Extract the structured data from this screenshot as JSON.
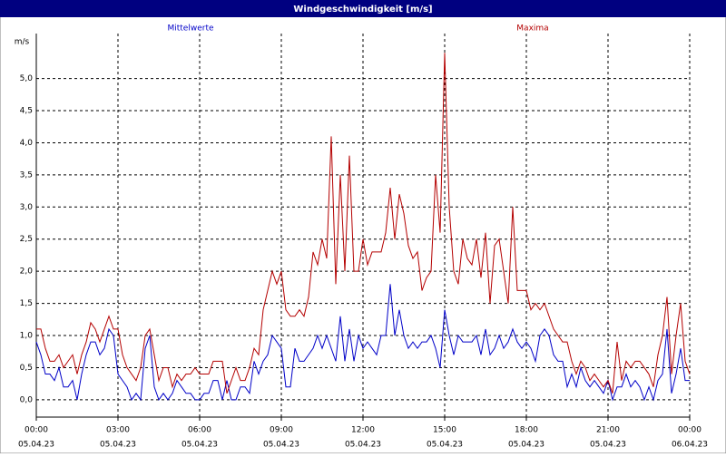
{
  "chart_data": {
    "type": "line",
    "title": "Windgeschwindigkeit [m/s]",
    "y_unit": "m/s",
    "x": [
      0,
      10,
      20,
      30,
      40,
      50,
      60,
      70,
      80,
      90,
      100,
      110,
      120,
      130,
      140,
      150,
      160,
      170,
      180,
      190,
      200,
      210,
      220,
      230,
      240,
      250,
      260,
      270,
      280,
      290,
      300,
      310,
      320,
      330,
      340,
      350,
      360,
      370,
      380,
      390,
      400,
      410,
      420,
      430,
      440,
      450,
      460,
      470,
      480,
      490,
      500,
      510,
      520,
      530,
      540,
      550,
      560,
      570,
      580,
      590,
      600,
      610,
      620,
      630,
      640,
      650,
      660,
      670,
      680,
      690,
      700,
      710,
      720,
      730,
      740,
      750,
      760,
      770,
      780,
      790,
      800,
      810,
      820,
      830,
      840,
      850,
      860,
      870,
      880,
      890,
      900,
      910,
      920,
      930,
      940,
      950,
      960,
      970,
      980,
      990,
      1000,
      1010,
      1020,
      1030,
      1040,
      1050,
      1060,
      1070,
      1080,
      1090,
      1100,
      1110,
      1120,
      1130,
      1140,
      1150,
      1160,
      1170,
      1180,
      1190,
      1200,
      1210,
      1220,
      1230,
      1240,
      1250,
      1260,
      1270,
      1280,
      1290,
      1300,
      1310,
      1320,
      1330,
      1340,
      1350,
      1360,
      1370,
      1380,
      1390,
      1400,
      1410,
      1420,
      1430,
      1440
    ],
    "series": [
      {
        "name": "Mittelwerte",
        "color": "#0000c8",
        "values": [
          0.9,
          0.7,
          0.4,
          0.4,
          0.3,
          0.5,
          0.2,
          0.2,
          0.3,
          0.0,
          0.4,
          0.7,
          0.9,
          0.9,
          0.7,
          0.8,
          1.1,
          1.0,
          0.4,
          0.3,
          0.2,
          0.0,
          0.1,
          0.0,
          0.8,
          1.0,
          0.2,
          0.0,
          0.1,
          0.0,
          0.1,
          0.3,
          0.2,
          0.1,
          0.1,
          0.0,
          0.0,
          0.1,
          0.1,
          0.3,
          0.3,
          0.0,
          0.3,
          0.0,
          0.0,
          0.2,
          0.2,
          0.1,
          0.6,
          0.4,
          0.6,
          0.7,
          1.0,
          0.9,
          0.8,
          0.2,
          0.2,
          0.8,
          0.6,
          0.6,
          0.7,
          0.8,
          1.0,
          0.8,
          1.0,
          0.8,
          0.6,
          1.3,
          0.6,
          1.1,
          0.6,
          1.0,
          0.8,
          0.9,
          0.8,
          0.7,
          1.0,
          1.0,
          1.8,
          1.0,
          1.4,
          1.0,
          0.8,
          0.9,
          0.8,
          0.9,
          0.9,
          1.0,
          0.8,
          0.5,
          1.4,
          1.0,
          0.7,
          1.0,
          0.9,
          0.9,
          0.9,
          1.0,
          0.7,
          1.1,
          0.7,
          0.8,
          1.0,
          0.8,
          0.9,
          1.1,
          0.9,
          0.8,
          0.9,
          0.8,
          0.6,
          1.0,
          1.1,
          1.0,
          0.7,
          0.6,
          0.6,
          0.2,
          0.4,
          0.2,
          0.5,
          0.3,
          0.2,
          0.3,
          0.2,
          0.1,
          0.3,
          0.0,
          0.2,
          0.2,
          0.4,
          0.2,
          0.3,
          0.2,
          0.0,
          0.2,
          0.0,
          0.3,
          0.4,
          1.1,
          0.1,
          0.4,
          0.8,
          0.3,
          0.3
        ]
      },
      {
        "name": "Maxima",
        "color": "#b40000",
        "values": [
          1.1,
          1.1,
          0.8,
          0.6,
          0.6,
          0.7,
          0.5,
          0.6,
          0.7,
          0.4,
          0.7,
          0.9,
          1.2,
          1.1,
          0.9,
          1.1,
          1.3,
          1.1,
          1.1,
          0.7,
          0.5,
          0.4,
          0.3,
          0.5,
          1.0,
          1.1,
          0.7,
          0.3,
          0.5,
          0.5,
          0.2,
          0.4,
          0.3,
          0.4,
          0.4,
          0.5,
          0.4,
          0.4,
          0.4,
          0.6,
          0.6,
          0.6,
          0.1,
          0.3,
          0.5,
          0.3,
          0.3,
          0.5,
          0.8,
          0.7,
          1.4,
          1.7,
          2.0,
          1.8,
          2.0,
          1.4,
          1.3,
          1.3,
          1.4,
          1.3,
          1.6,
          2.3,
          2.1,
          2.5,
          2.2,
          4.1,
          1.8,
          3.5,
          2.0,
          3.8,
          2.0,
          2.0,
          2.5,
          2.1,
          2.3,
          2.3,
          2.3,
          2.6,
          3.3,
          2.5,
          3.2,
          2.9,
          2.4,
          2.2,
          2.3,
          1.7,
          1.9,
          2.0,
          3.5,
          2.6,
          5.4,
          3.0,
          2.0,
          1.8,
          2.5,
          2.2,
          2.1,
          2.5,
          1.9,
          2.6,
          1.5,
          2.4,
          2.5,
          2.0,
          1.5,
          3.0,
          1.7,
          1.7,
          1.7,
          1.4,
          1.5,
          1.4,
          1.5,
          1.3,
          1.1,
          1.0,
          0.9,
          0.9,
          0.6,
          0.4,
          0.6,
          0.5,
          0.3,
          0.4,
          0.3,
          0.2,
          0.3,
          0.1,
          0.9,
          0.3,
          0.6,
          0.5,
          0.6,
          0.6,
          0.5,
          0.4,
          0.2,
          0.7,
          1.0,
          1.6,
          0.4,
          1.0,
          1.5,
          0.6,
          0.4
        ]
      }
    ],
    "xlim": [
      0,
      1440
    ],
    "xticks": [
      {
        "value": 0,
        "label": "00:00",
        "date": "05.04.23"
      },
      {
        "value": 180,
        "label": "03:00",
        "date": "05.04.23"
      },
      {
        "value": 360,
        "label": "06:00",
        "date": "05.04.23"
      },
      {
        "value": 540,
        "label": "09:00",
        "date": "05.04.23"
      },
      {
        "value": 720,
        "label": "12:00",
        "date": "05.04.23"
      },
      {
        "value": 900,
        "label": "15:00",
        "date": "05.04.23"
      },
      {
        "value": 1080,
        "label": "18:00",
        "date": "05.04.23"
      },
      {
        "value": 1260,
        "label": "21:00",
        "date": "05.04.23"
      },
      {
        "value": 1440,
        "label": "00:00",
        "date": "06.04.23"
      }
    ],
    "ylim": [
      -0.27,
      5.7
    ],
    "yticks": [
      {
        "value": 0,
        "label": "0,0"
      },
      {
        "value": 0.5,
        "label": "0,5"
      },
      {
        "value": 1,
        "label": "1,0"
      },
      {
        "value": 1.5,
        "label": "1,5"
      },
      {
        "value": 2,
        "label": "2,0"
      },
      {
        "value": 2.5,
        "label": "2,5"
      },
      {
        "value": 3,
        "label": "3,0"
      },
      {
        "value": 3.5,
        "label": "3,5"
      },
      {
        "value": 4,
        "label": "4,0"
      },
      {
        "value": 4.5,
        "label": "4,5"
      },
      {
        "value": 5,
        "label": "5,0"
      }
    ],
    "grid": true
  }
}
